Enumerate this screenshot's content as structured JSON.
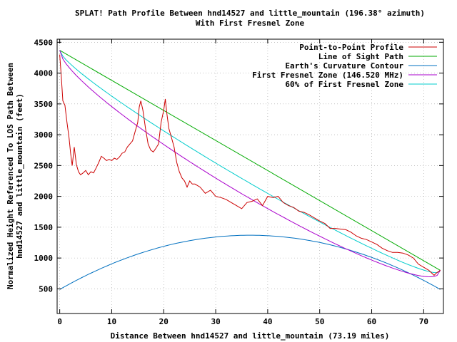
{
  "chart_data": {
    "type": "line",
    "title": "SPLAT! Path Profile Between hnd14527 and little_mountain (196.38° azimuth)",
    "subtitle": "With First Fresnel Zone",
    "xlabel": "Distance Between hnd14527 and little_mountain (73.19 miles)",
    "ylabel_line1": "Normalized Height Referenced To LOS Path Between",
    "ylabel_line2": "hnd14527 and little_mountain (feet)",
    "xlim": [
      -0.5,
      73.8
    ],
    "ylim": [
      100,
      4550
    ],
    "x_ticks": [
      0,
      10,
      20,
      30,
      40,
      50,
      60,
      70
    ],
    "y_ticks": [
      500,
      1000,
      1500,
      2000,
      2500,
      3000,
      3500,
      4000,
      4500
    ],
    "x_tick_labels": [
      "0",
      "10",
      "20",
      "30",
      "40",
      "50",
      "60",
      "70"
    ],
    "y_tick_labels": [
      "500",
      "1000",
      "1500",
      "2000",
      "2500",
      "3000",
      "3500",
      "4000",
      "4500"
    ],
    "grid": true,
    "legend_position": "top-right",
    "series": [
      {
        "name": "Point-to-Point Profile",
        "color": "#cc0000",
        "points": [
          [
            0,
            4300
          ],
          [
            0.3,
            3950
          ],
          [
            0.6,
            3550
          ],
          [
            1,
            3480
          ],
          [
            1.4,
            3200
          ],
          [
            1.8,
            2950
          ],
          [
            2.1,
            2700
          ],
          [
            2.4,
            2500
          ],
          [
            2.8,
            2800
          ],
          [
            3.2,
            2520
          ],
          [
            3.6,
            2400
          ],
          [
            4,
            2350
          ],
          [
            4.5,
            2380
          ],
          [
            5,
            2420
          ],
          [
            5.5,
            2350
          ],
          [
            6,
            2400
          ],
          [
            6.5,
            2380
          ],
          [
            7,
            2460
          ],
          [
            7.5,
            2550
          ],
          [
            8,
            2650
          ],
          [
            8.5,
            2620
          ],
          [
            9,
            2580
          ],
          [
            9.5,
            2600
          ],
          [
            10,
            2580
          ],
          [
            10.5,
            2620
          ],
          [
            11,
            2600
          ],
          [
            11.5,
            2640
          ],
          [
            12,
            2700
          ],
          [
            12.5,
            2720
          ],
          [
            13,
            2800
          ],
          [
            13.5,
            2850
          ],
          [
            14,
            2900
          ],
          [
            14.5,
            3050
          ],
          [
            15,
            3200
          ],
          [
            15.3,
            3450
          ],
          [
            15.6,
            3550
          ],
          [
            16,
            3400
          ],
          [
            16.5,
            3100
          ],
          [
            17,
            2850
          ],
          [
            17.5,
            2750
          ],
          [
            18,
            2720
          ],
          [
            18.5,
            2780
          ],
          [
            19,
            2850
          ],
          [
            19.5,
            3200
          ],
          [
            20,
            3400
          ],
          [
            20.3,
            3580
          ],
          [
            20.6,
            3350
          ],
          [
            21,
            3100
          ],
          [
            21.5,
            2950
          ],
          [
            22,
            2800
          ],
          [
            22.5,
            2550
          ],
          [
            23,
            2400
          ],
          [
            23.5,
            2300
          ],
          [
            24,
            2250
          ],
          [
            24.5,
            2150
          ],
          [
            25,
            2250
          ],
          [
            25.5,
            2200
          ],
          [
            26,
            2200
          ],
          [
            27,
            2150
          ],
          [
            28,
            2050
          ],
          [
            29,
            2100
          ],
          [
            30,
            2000
          ],
          [
            31,
            1980
          ],
          [
            32,
            1950
          ],
          [
            33,
            1900
          ],
          [
            34,
            1850
          ],
          [
            35,
            1800
          ],
          [
            36,
            1900
          ],
          [
            37,
            1920
          ],
          [
            38,
            1960
          ],
          [
            39,
            1850
          ],
          [
            40,
            2000
          ],
          [
            41,
            1980
          ],
          [
            42,
            2000
          ],
          [
            43,
            1900
          ],
          [
            44,
            1850
          ],
          [
            45,
            1820
          ],
          [
            46,
            1760
          ],
          [
            47,
            1740
          ],
          [
            48,
            1700
          ],
          [
            49,
            1650
          ],
          [
            50,
            1600
          ],
          [
            51,
            1560
          ],
          [
            52,
            1480
          ],
          [
            53,
            1480
          ],
          [
            54,
            1470
          ],
          [
            55,
            1460
          ],
          [
            56,
            1420
          ],
          [
            57,
            1360
          ],
          [
            58,
            1320
          ],
          [
            59,
            1300
          ],
          [
            60,
            1260
          ],
          [
            61,
            1220
          ],
          [
            62,
            1160
          ],
          [
            63,
            1120
          ],
          [
            64,
            1090
          ],
          [
            65,
            1090
          ],
          [
            66,
            1080
          ],
          [
            67,
            1050
          ],
          [
            68,
            1000
          ],
          [
            69,
            900
          ],
          [
            70,
            850
          ],
          [
            71,
            800
          ],
          [
            72,
            720
          ],
          [
            72.5,
            760
          ],
          [
            73.19,
            800
          ]
        ]
      },
      {
        "name": "Line of Sight Path",
        "color": "#00aa00",
        "points": [
          [
            0,
            4370
          ],
          [
            73.19,
            800
          ]
        ]
      },
      {
        "name": "Earth's Curvature Contour",
        "color": "#0070c0",
        "curve": "parabola",
        "start": [
          0,
          490
        ],
        "peak": [
          36.6,
          1370
        ],
        "end": [
          73.19,
          490
        ]
      },
      {
        "name": "First Fresnel Zone (146.520 MHz)",
        "color": "#aa00cc",
        "curve": "fresnel",
        "fraction": 1.0,
        "radius_ft": 620
      },
      {
        "name": "60% of First Fresnel Zone",
        "color": "#00cccc",
        "curve": "fresnel",
        "fraction": 0.6,
        "radius_ft": 620
      }
    ]
  }
}
